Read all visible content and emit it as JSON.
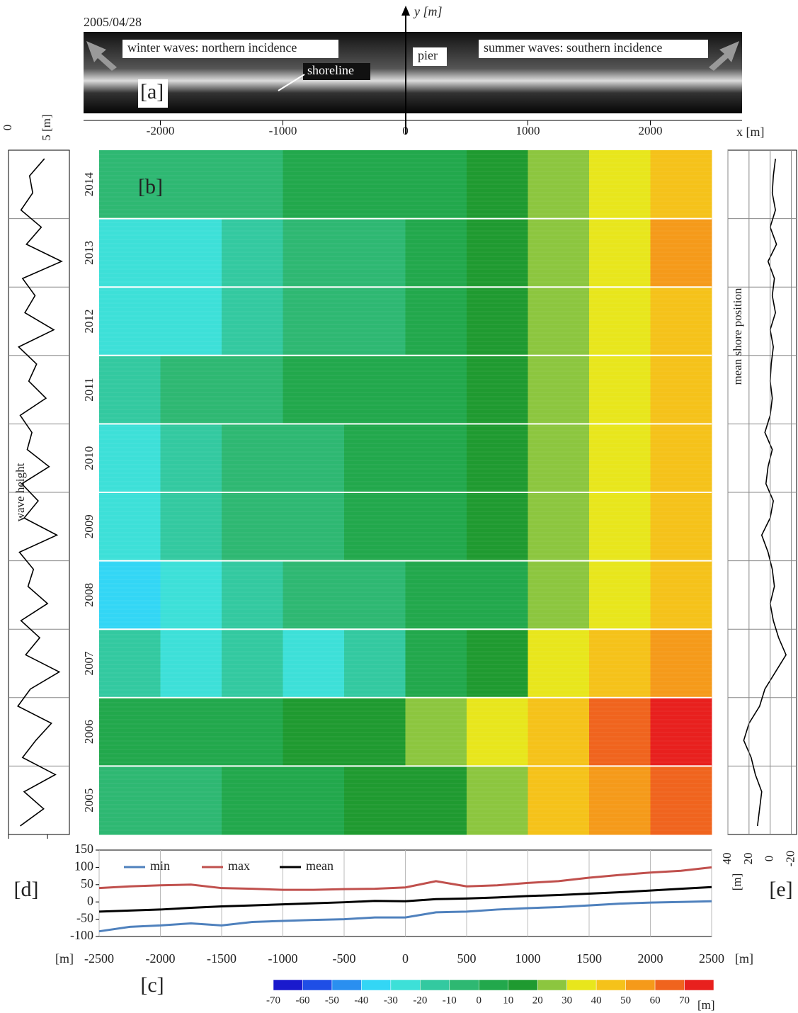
{
  "chart_data": [
    {
      "type": "image",
      "label": "[a]",
      "title": "2005/04/28",
      "y_label": "y [m]",
      "annotations": [
        "winter waves: northern incidence",
        "summer waves: southern incidence",
        "pier",
        "shoreline"
      ]
    },
    {
      "type": "heatmap",
      "label": "[b]",
      "x_label": "x [m]",
      "xlim": [
        -2500,
        2500
      ],
      "xticks": [
        -2000,
        -1000,
        0,
        1000,
        2000
      ],
      "x": [
        -2250,
        -1750,
        -1250,
        -750,
        -250,
        250,
        750,
        1250,
        1750,
        2250
      ],
      "categories": [
        "2005",
        "2006",
        "2007",
        "2008",
        "2009",
        "2010",
        "2011",
        "2012",
        "2013",
        "2014"
      ],
      "values": [
        [
          -10,
          -5,
          0,
          5,
          10,
          15,
          25,
          40,
          55,
          65
        ],
        [
          0,
          0,
          5,
          10,
          15,
          25,
          35,
          45,
          60,
          70
        ],
        [
          -20,
          -25,
          -20,
          -25,
          -15,
          0,
          15,
          30,
          40,
          50
        ],
        [
          -35,
          -25,
          -15,
          -10,
          -5,
          0,
          5,
          20,
          35,
          45
        ],
        [
          -25,
          -20,
          -10,
          -5,
          0,
          5,
          10,
          20,
          30,
          40
        ],
        [
          -25,
          -20,
          -10,
          -5,
          0,
          5,
          10,
          20,
          30,
          45
        ],
        [
          -15,
          -10,
          -5,
          0,
          0,
          5,
          10,
          20,
          30,
          40
        ],
        [
          -25,
          -25,
          -15,
          -10,
          -5,
          5,
          10,
          20,
          35,
          45
        ],
        [
          -30,
          -25,
          -15,
          -10,
          -5,
          0,
          10,
          20,
          35,
          50
        ],
        [
          -10,
          -10,
          -5,
          0,
          0,
          5,
          10,
          20,
          30,
          40
        ]
      ],
      "colorscale": [
        "#1a1acd",
        "#1f4ee6",
        "#2a8ff0",
        "#33d6f5",
        "#3de0d8",
        "#33c9a0",
        "#2eb872",
        "#22a84c",
        "#1f9a30",
        "#8cc63f",
        "#e8e61c",
        "#f5c21a",
        "#f59a1a",
        "#f0641e",
        "#e8201e"
      ],
      "colorbar_ticks": [
        -70,
        -60,
        -50,
        -40,
        -30,
        -20,
        -10,
        0,
        10,
        20,
        30,
        40,
        50,
        60,
        70
      ],
      "colorbar_unit": "[m]"
    },
    {
      "type": "line",
      "orientation": "vertical",
      "x_label": "wave height",
      "xlim": [
        0,
        7.8
      ],
      "xticks": [
        0,
        {
          "value": 5,
          "label": "5 [m]"
        }
      ],
      "color": "#000000",
      "values": [
        1.5,
        4.5,
        2.0,
        6.0,
        1.8,
        3.5,
        5.5,
        1.2,
        2.8,
        6.5,
        2.2,
        4.0,
        1.6,
        5.0,
        2.5,
        3.2,
        1.4,
        6.2,
        2.0,
        3.8,
        1.7,
        5.2,
        2.4,
        3.0,
        1.5,
        4.8,
        2.6,
        3.6,
        1.3,
        5.8,
        2.1,
        3.4,
        1.8,
        6.8,
        2.3,
        4.2,
        1.6,
        3.1,
        2.7,
        4.6
      ]
    },
    {
      "type": "line",
      "orientation": "vertical",
      "label": "[e]",
      "x_label": "mean shore position",
      "x_unit": "[m]",
      "xlim": [
        40,
        -25
      ],
      "xticks": [
        40,
        20,
        0,
        -20
      ],
      "color": "#000000",
      "values": [
        12,
        10,
        8,
        14,
        18,
        25,
        20,
        10,
        5,
        -5,
        -15,
        -8,
        -3,
        0,
        -4,
        -2,
        2,
        8,
        0,
        -3,
        4,
        2,
        -2,
        5,
        0,
        -2,
        0,
        -1,
        -3,
        0,
        -5,
        -2,
        -4,
        2,
        -6,
        0,
        -5,
        -2,
        -3,
        -5
      ]
    },
    {
      "type": "line",
      "panel_labels": [
        "[c]",
        "[d]"
      ],
      "x_units": [
        "[m]",
        "[m]"
      ],
      "xlim": [
        -2500,
        2500
      ],
      "xticks": [
        -2500,
        -2000,
        -1500,
        -1000,
        -500,
        0,
        500,
        1000,
        1500,
        2000,
        2500
      ],
      "ylim": [
        -100,
        150
      ],
      "yticks": [
        -100,
        -50,
        0,
        50,
        100,
        150
      ],
      "grid": true,
      "x": [
        -2500,
        -2250,
        -2000,
        -1750,
        -1500,
        -1250,
        -1000,
        -750,
        -500,
        -250,
        0,
        250,
        500,
        750,
        1000,
        1250,
        1500,
        1750,
        2000,
        2250,
        2500
      ],
      "series": [
        {
          "name": "min",
          "color": "#4f81bd",
          "values": [
            -85,
            -72,
            -68,
            -62,
            -68,
            -58,
            -55,
            -52,
            -50,
            -45,
            -45,
            -30,
            -28,
            -22,
            -18,
            -15,
            -10,
            -5,
            -2,
            0,
            2
          ]
        },
        {
          "name": "max",
          "color": "#c0504d",
          "values": [
            40,
            45,
            48,
            50,
            40,
            38,
            35,
            35,
            37,
            38,
            42,
            60,
            45,
            48,
            55,
            60,
            70,
            78,
            85,
            90,
            100
          ]
        },
        {
          "name": "mean",
          "color": "#000000",
          "values": [
            -28,
            -25,
            -22,
            -17,
            -13,
            -10,
            -7,
            -4,
            -1,
            3,
            2,
            8,
            10,
            13,
            17,
            20,
            24,
            28,
            33,
            38,
            43
          ]
        }
      ]
    }
  ]
}
